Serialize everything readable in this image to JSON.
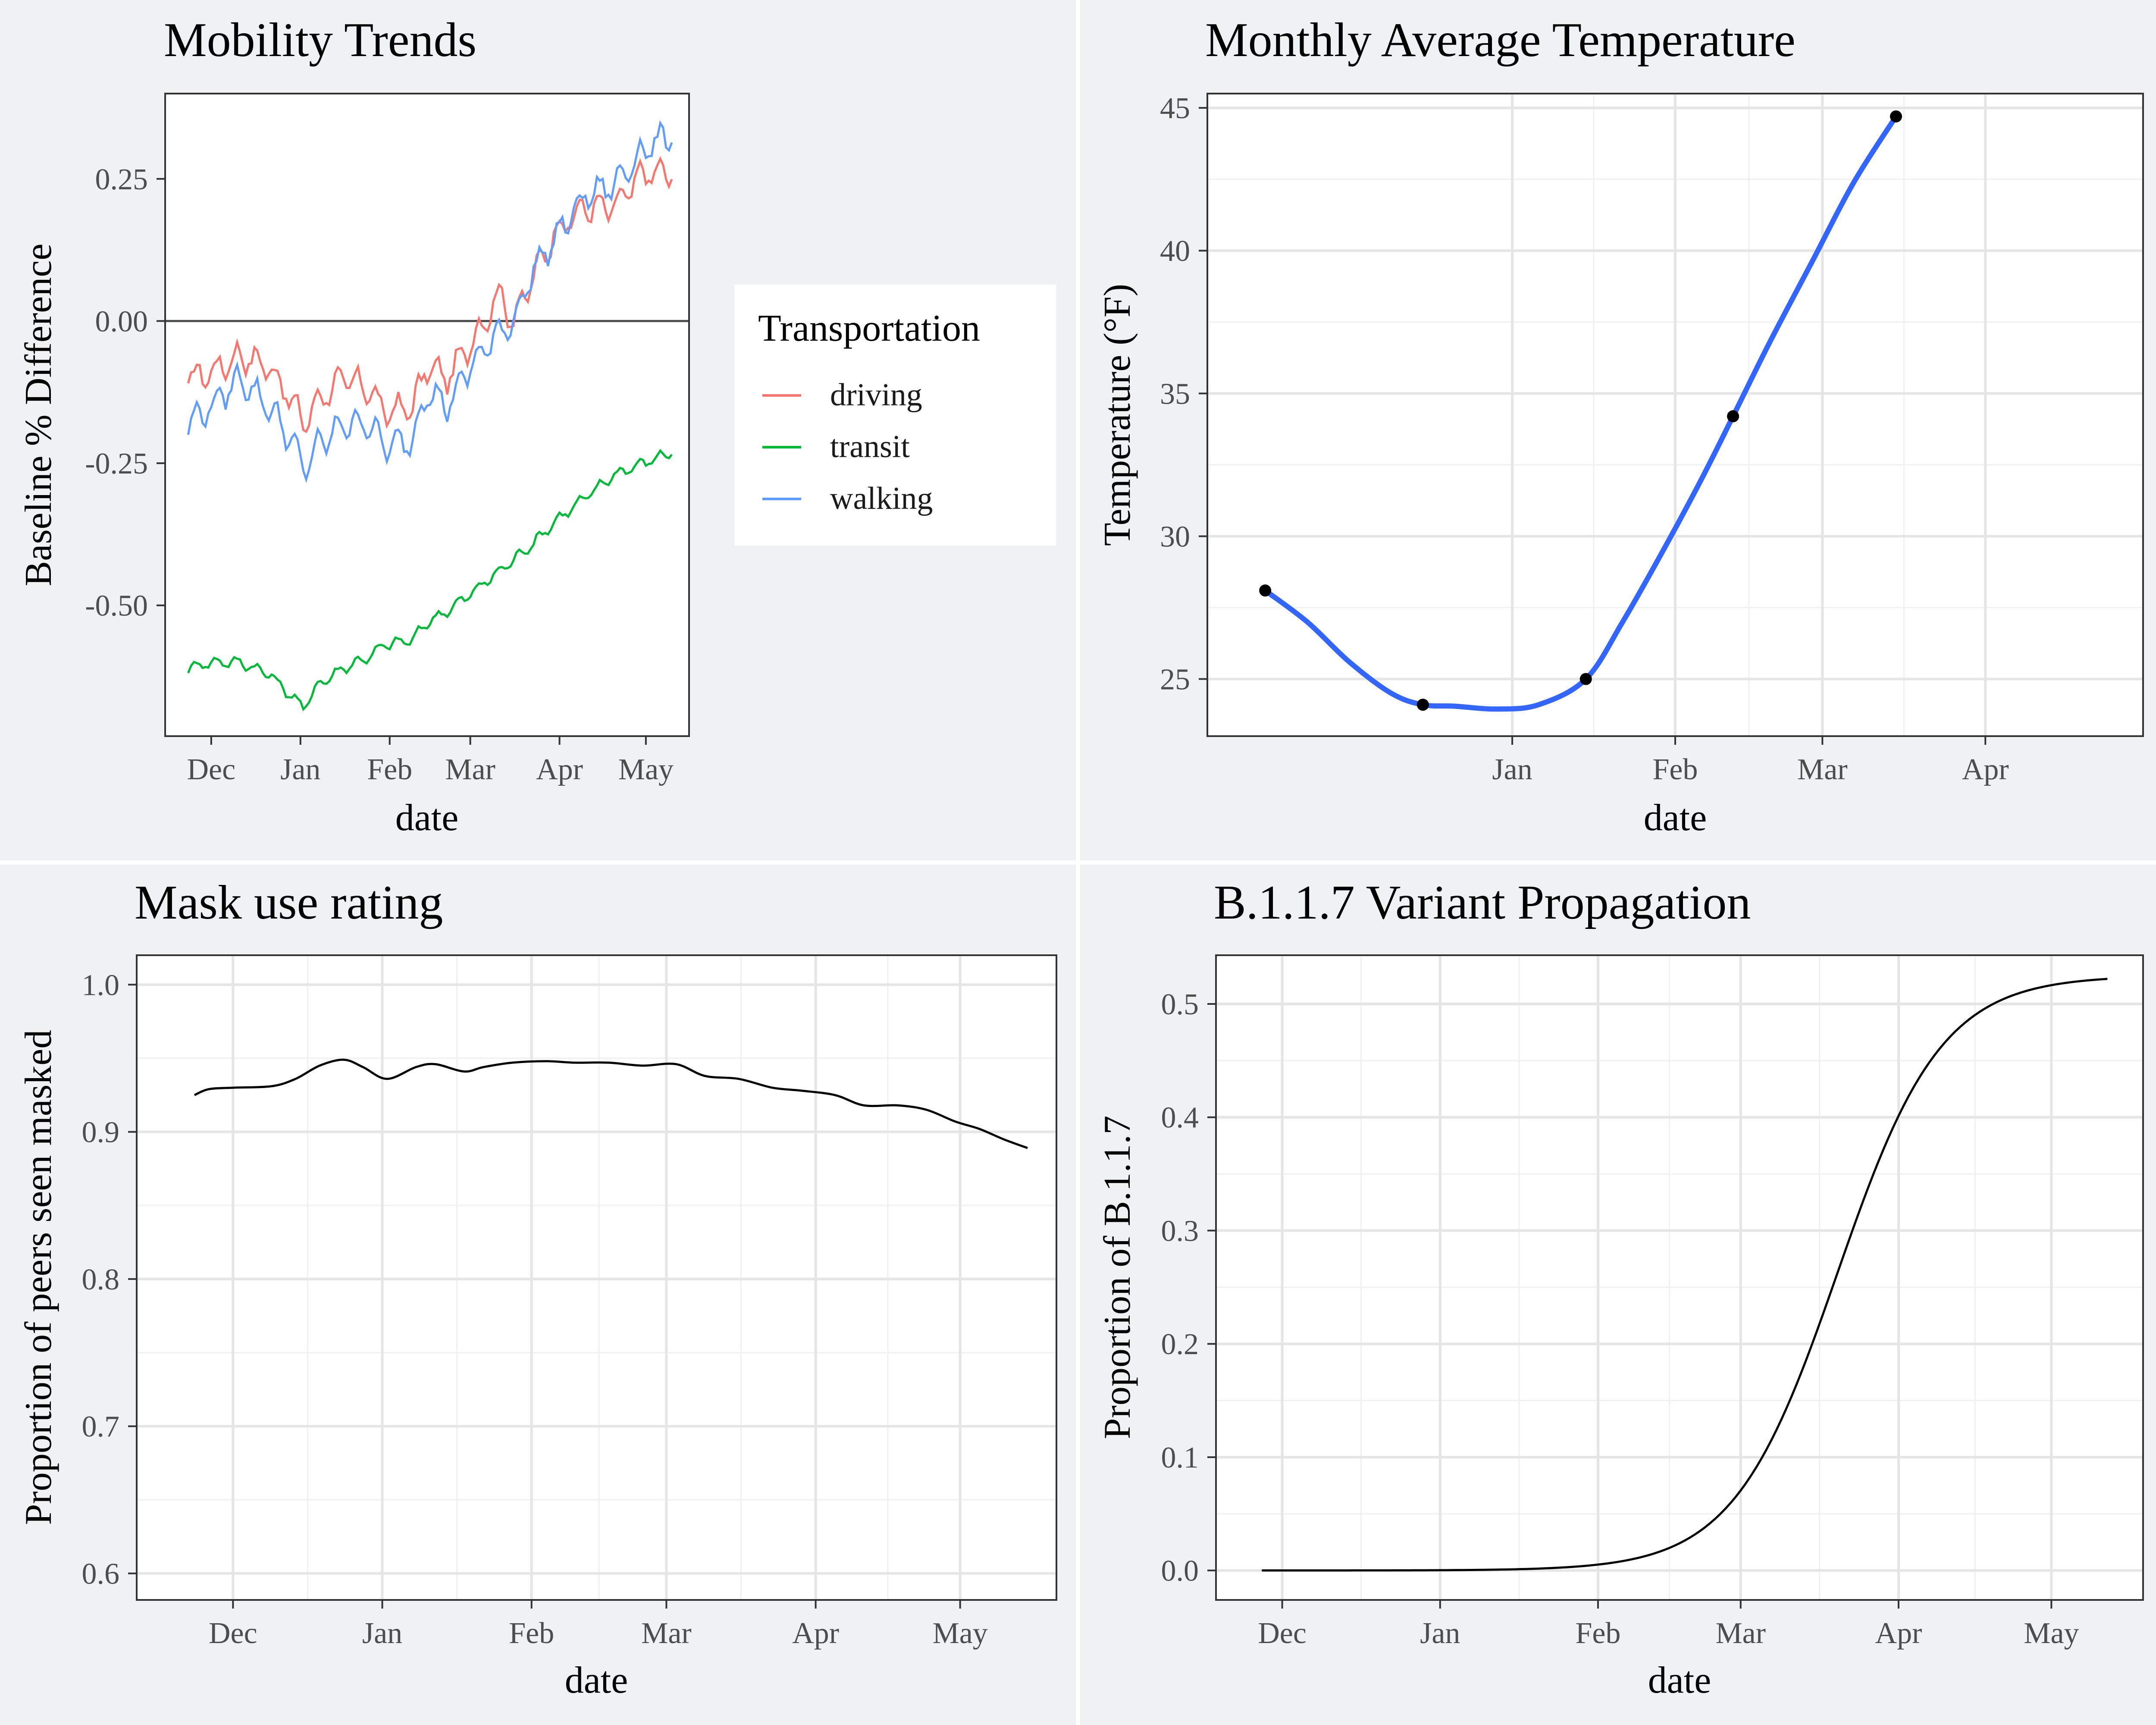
{
  "colors": {
    "page_bg": "#f0f1f3",
    "panel_bg": "#ffffff",
    "separator": "#ffffff",
    "driving": "#F8766D",
    "transit": "#00BA38",
    "walking": "#619CFF",
    "temp_line": "#3366FF",
    "black_line": "#000000"
  },
  "chart_data": [
    {
      "type": "line",
      "title": "Mobility Trends",
      "xlabel": "date",
      "ylabel": "Baseline % Difference",
      "x_ticks": [
        "Dec",
        "Jan",
        "Feb",
        "Mar",
        "Apr",
        "May"
      ],
      "x_range_days": [
        -16,
        166
      ],
      "y_ticks": [
        "0.25",
        "0.00",
        "-0.25",
        "-0.50"
      ],
      "y_tick_values": [
        0.25,
        0,
        -0.25,
        -0.5
      ],
      "ylim": [
        -0.73,
        0.4
      ],
      "hline": 0,
      "grid": false,
      "legend": {
        "title": "Transportation",
        "position": "right",
        "entries": [
          "driving",
          "transit",
          "walking"
        ]
      },
      "series": [
        {
          "name": "driving",
          "color": "#F8766D",
          "x": [
            -8,
            0,
            10,
            20,
            28,
            32,
            37,
            46,
            55,
            60,
            70,
            75,
            82,
            90,
            95,
            100,
            105,
            112,
            120,
            130,
            140,
            150,
            160
          ],
          "y": [
            -0.1,
            -0.09,
            -0.06,
            -0.08,
            -0.14,
            -0.18,
            -0.14,
            -0.1,
            -0.12,
            -0.16,
            -0.15,
            -0.08,
            -0.1,
            -0.04,
            0.0,
            0.05,
            0.0,
            0.08,
            0.16,
            0.2,
            0.2,
            0.26,
            0.26
          ]
        },
        {
          "name": "transit",
          "color": "#00BA38",
          "x": [
            -8,
            0,
            10,
            20,
            28,
            32,
            37,
            46,
            55,
            60,
            70,
            75,
            82,
            90,
            95,
            100,
            105,
            112,
            120,
            130,
            140,
            150,
            160
          ],
          "y": [
            -0.61,
            -0.6,
            -0.6,
            -0.62,
            -0.66,
            -0.68,
            -0.64,
            -0.61,
            -0.59,
            -0.57,
            -0.56,
            -0.53,
            -0.51,
            -0.48,
            -0.46,
            -0.44,
            -0.42,
            -0.39,
            -0.35,
            -0.31,
            -0.27,
            -0.25,
            -0.23
          ]
        },
        {
          "name": "walking",
          "color": "#619CFF",
          "x": [
            -8,
            0,
            10,
            20,
            28,
            32,
            37,
            46,
            55,
            60,
            70,
            75,
            82,
            90,
            95,
            100,
            105,
            112,
            120,
            130,
            140,
            150,
            160
          ],
          "y": [
            -0.18,
            -0.15,
            -0.1,
            -0.15,
            -0.21,
            -0.26,
            -0.22,
            -0.18,
            -0.18,
            -0.22,
            -0.21,
            -0.12,
            -0.15,
            -0.08,
            -0.05,
            -0.02,
            0.0,
            0.09,
            0.15,
            0.22,
            0.24,
            0.3,
            0.33
          ]
        }
      ]
    },
    {
      "type": "line",
      "title": "Monthly Average Temperature",
      "xlabel": "date",
      "ylabel": "Temperature (°F)",
      "x_ticks": [
        "Jan",
        "Feb",
        "Mar",
        "Apr"
      ],
      "x_range_days": [
        -27,
        151
      ],
      "y_ticks": [
        "25",
        "30",
        "35",
        "40",
        "45"
      ],
      "y_tick_values": [
        25,
        30,
        35,
        40,
        45
      ],
      "ylim": [
        23,
        45.5
      ],
      "grid": true,
      "series": [
        {
          "name": "",
          "color": "#3366FF",
          "smooth": true,
          "points_x": [
            -16,
            14,
            45,
            73,
            104
          ],
          "points_y": [
            28.1,
            24.1,
            25.0,
            34.2,
            44.7
          ],
          "x": [
            -16,
            -8,
            0,
            8,
            14,
            20,
            28,
            36,
            45,
            52,
            60,
            67,
            73,
            80,
            88,
            96,
            104
          ],
          "y": [
            28.1,
            27.0,
            25.6,
            24.5,
            24.1,
            24.05,
            23.95,
            24.1,
            25.0,
            27.0,
            29.6,
            32.0,
            34.2,
            36.8,
            39.6,
            42.4,
            44.7
          ]
        }
      ]
    },
    {
      "type": "line",
      "title": "Mask use rating",
      "xlabel": "date",
      "ylabel": "Proportion of peers seen masked",
      "x_ticks": [
        "Dec",
        "Jan",
        "Feb",
        "Mar",
        "Apr",
        "May"
      ],
      "x_range_days": [
        -20,
        171
      ],
      "y_ticks": [
        "0.6",
        "0.7",
        "0.8",
        "0.9",
        "1.0"
      ],
      "y_tick_values": [
        0.6,
        0.7,
        0.8,
        0.9,
        1.0
      ],
      "ylim": [
        0.582,
        1.02
      ],
      "grid": true,
      "series": [
        {
          "name": "",
          "color": "#000000",
          "x": [
            -8,
            -5,
            0,
            8,
            13,
            18,
            23,
            27,
            32,
            38,
            42,
            48,
            52,
            58,
            65,
            71,
            78,
            85,
            92,
            98,
            105,
            112,
            118,
            125,
            131,
            138,
            144,
            150,
            155,
            160,
            165
          ],
          "y": [
            0.925,
            0.929,
            0.93,
            0.931,
            0.936,
            0.945,
            0.949,
            0.944,
            0.936,
            0.944,
            0.946,
            0.941,
            0.944,
            0.947,
            0.948,
            0.947,
            0.947,
            0.945,
            0.946,
            0.938,
            0.936,
            0.93,
            0.928,
            0.925,
            0.918,
            0.918,
            0.915,
            0.907,
            0.902,
            0.895,
            0.889
          ]
        }
      ]
    },
    {
      "type": "line",
      "title": "B.1.1.7 Variant Propagation",
      "xlabel": "date",
      "ylabel": "Proportion of B.1.1.7",
      "x_ticks": [
        "Dec",
        "Jan",
        "Feb",
        "Mar",
        "Apr",
        "May"
      ],
      "x_range_days": [
        -13,
        169
      ],
      "y_ticks": [
        "0.0",
        "0.1",
        "0.2",
        "0.3",
        "0.4",
        "0.5"
      ],
      "y_tick_values": [
        0,
        0.1,
        0.2,
        0.3,
        0.4,
        0.5
      ],
      "ylim": [
        -0.026,
        0.543
      ],
      "grid": true,
      "series": [
        {
          "name": "",
          "color": "#000000",
          "logistic": {
            "L": 0.525,
            "k": 0.098,
            "x0": 109,
            "x_from": -4,
            "x_to": 162
          }
        }
      ]
    }
  ]
}
